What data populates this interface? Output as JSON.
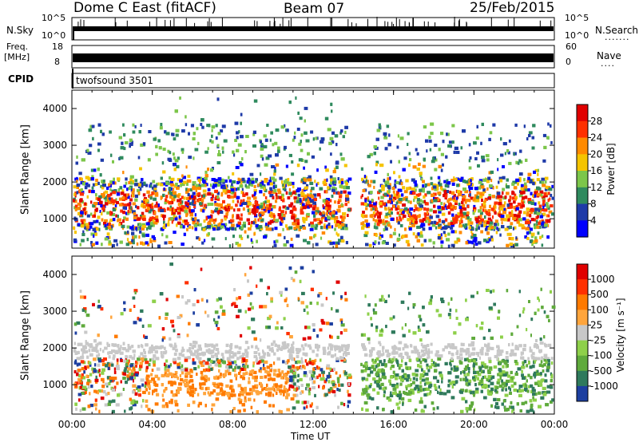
{
  "header": {
    "station": "Dome C East (fitACF)",
    "beam": "Beam 07",
    "date": "25/Feb/2015"
  },
  "top_panels": {
    "nsky_label": "N.Sky",
    "nsky_ticks": [
      "10^5",
      "10^0"
    ],
    "nsearch_label": "N.Search",
    "nsearch_ticks": [
      "10^5",
      "10^0"
    ],
    "freq_label": "Freq.",
    "freq_unit": "[MHz]",
    "freq_ticks": [
      "18",
      "8"
    ],
    "nave_label": "Nave",
    "nave_ticks": [
      "60",
      "0"
    ],
    "cpid_label": "CPID",
    "cpid_value": "twofsound 3501"
  },
  "chart_data": [
    {
      "type": "heatmap",
      "ylabel": "Slant Range [km]",
      "yticks": [
        "4000",
        "3000",
        "2000",
        "1000"
      ],
      "ylim": [
        200,
        4500
      ],
      "colorbar_label": "Power [dB]",
      "colorbar_ticks": [
        "28",
        "24",
        "20",
        "16",
        "12",
        "8",
        "4"
      ],
      "colors": [
        "#0000ff",
        "#1e3aa8",
        "#2f8a5e",
        "#7cc64a",
        "#f5c400",
        "#ff8a00",
        "#ff3000",
        "#e00000"
      ]
    },
    {
      "type": "heatmap",
      "ylabel": "Slant Range [km]",
      "xlabel": "Time UT",
      "xticks": [
        "00:00",
        "04:00",
        "08:00",
        "12:00",
        "16:00",
        "20:00",
        "00:00"
      ],
      "yticks": [
        "4000",
        "3000",
        "2000",
        "1000"
      ],
      "ylim": [
        200,
        4500
      ],
      "colorbar_label": "Velocity [m s⁻¹]",
      "colorbar_ticks": [
        "1000",
        "500",
        "100",
        "25",
        "-25",
        "-100",
        "-500",
        "-1000"
      ],
      "colors": [
        "#1d3fa0",
        "#2f7a5c",
        "#5faa3c",
        "#8ed04a",
        "#c8c8c8",
        "#ffa53c",
        "#ff7a00",
        "#ff3000",
        "#e00000"
      ]
    }
  ]
}
